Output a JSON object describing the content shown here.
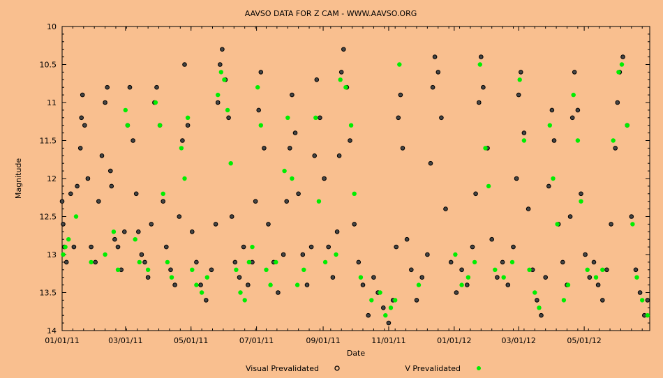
{
  "chart_data": {
    "type": "scatter",
    "title": "AAVSO DATA FOR Z CAM - WWW.AAVSO.ORG",
    "xlabel": "Date",
    "ylabel": "Magnitude",
    "x_axis": {
      "start": "2011-01-01",
      "end": "2012-07-01",
      "tick_labels": [
        "01/01/11",
        "03/01/11",
        "05/01/11",
        "07/01/11",
        "09/01/11",
        "11/01/11",
        "01/01/12",
        "03/01/12",
        "05/01/12"
      ],
      "tick_dates": [
        "2011-01-01",
        "2011-03-01",
        "2011-05-01",
        "2011-07-01",
        "2011-09-01",
        "2011-11-01",
        "2012-01-01",
        "2012-03-01",
        "2012-05-01"
      ]
    },
    "y_axis": {
      "range": [
        10,
        14
      ],
      "inverted": true,
      "tick_labels": [
        "10",
        "10.5",
        "11",
        "11.5",
        "12",
        "12.5",
        "13",
        "13.5",
        "14"
      ]
    },
    "grid": false,
    "legend_position": "bottom",
    "colors": {
      "background": "#f9bf8f",
      "visual": "#000000",
      "v_band": "#00ee00"
    },
    "series": [
      {
        "name": "Visual Prevalidated",
        "marker": "black-open-circle",
        "points": [
          [
            "2011-01-01",
            12.3
          ],
          [
            "2011-01-02",
            12.6
          ],
          [
            "2011-01-03",
            12.9
          ],
          [
            "2011-01-05",
            13.1
          ],
          [
            "2011-01-09",
            12.2
          ],
          [
            "2011-01-12",
            12.9
          ],
          [
            "2011-01-15",
            12.1
          ],
          [
            "2011-01-18",
            11.6
          ],
          [
            "2011-01-19",
            11.2
          ],
          [
            "2011-01-20",
            10.9
          ],
          [
            "2011-01-22",
            11.3
          ],
          [
            "2011-01-25",
            12.0
          ],
          [
            "2011-01-28",
            12.9
          ],
          [
            "2011-02-01",
            13.1
          ],
          [
            "2011-02-04",
            12.3
          ],
          [
            "2011-02-07",
            11.7
          ],
          [
            "2011-02-10",
            11.0
          ],
          [
            "2011-02-12",
            10.8
          ],
          [
            "2011-02-15",
            11.9
          ],
          [
            "2011-02-16",
            12.1
          ],
          [
            "2011-02-19",
            12.8
          ],
          [
            "2011-02-22",
            12.9
          ],
          [
            "2011-02-25",
            13.2
          ],
          [
            "2011-02-28",
            12.7
          ],
          [
            "2011-03-03",
            11.3
          ],
          [
            "2011-03-05",
            10.8
          ],
          [
            "2011-03-08",
            11.5
          ],
          [
            "2011-03-11",
            12.2
          ],
          [
            "2011-03-13",
            12.7
          ],
          [
            "2011-03-16",
            13.0
          ],
          [
            "2011-03-19",
            13.1
          ],
          [
            "2011-03-22",
            13.3
          ],
          [
            "2011-03-25",
            12.6
          ],
          [
            "2011-03-28",
            11.0
          ],
          [
            "2011-03-30",
            10.8
          ],
          [
            "2011-04-02",
            11.3
          ],
          [
            "2011-04-05",
            12.3
          ],
          [
            "2011-04-08",
            12.9
          ],
          [
            "2011-04-12",
            13.2
          ],
          [
            "2011-04-16",
            13.4
          ],
          [
            "2011-04-20",
            12.5
          ],
          [
            "2011-04-23",
            11.5
          ],
          [
            "2011-04-25",
            10.5
          ],
          [
            "2011-04-28",
            11.3
          ],
          [
            "2011-05-02",
            12.7
          ],
          [
            "2011-05-06",
            13.1
          ],
          [
            "2011-05-10",
            13.4
          ],
          [
            "2011-05-15",
            13.6
          ],
          [
            "2011-05-20",
            13.2
          ],
          [
            "2011-05-24",
            12.6
          ],
          [
            "2011-05-26",
            11.0
          ],
          [
            "2011-05-28",
            10.5
          ],
          [
            "2011-05-30",
            10.3
          ],
          [
            "2011-06-02",
            10.7
          ],
          [
            "2011-06-05",
            11.2
          ],
          [
            "2011-06-08",
            12.5
          ],
          [
            "2011-06-11",
            13.1
          ],
          [
            "2011-06-15",
            13.3
          ],
          [
            "2011-06-19",
            12.9
          ],
          [
            "2011-06-23",
            13.4
          ],
          [
            "2011-06-27",
            13.1
          ],
          [
            "2011-06-30",
            12.3
          ],
          [
            "2011-07-03",
            11.1
          ],
          [
            "2011-07-05",
            10.6
          ],
          [
            "2011-07-08",
            11.6
          ],
          [
            "2011-07-12",
            12.6
          ],
          [
            "2011-07-17",
            13.1
          ],
          [
            "2011-07-21",
            13.5
          ],
          [
            "2011-07-26",
            13.0
          ],
          [
            "2011-07-29",
            12.3
          ],
          [
            "2011-08-01",
            11.6
          ],
          [
            "2011-08-03",
            10.9
          ],
          [
            "2011-08-06",
            11.4
          ],
          [
            "2011-08-09",
            12.2
          ],
          [
            "2011-08-13",
            13.0
          ],
          [
            "2011-08-17",
            13.4
          ],
          [
            "2011-08-21",
            12.9
          ],
          [
            "2011-08-24",
            11.7
          ],
          [
            "2011-08-26",
            10.7
          ],
          [
            "2011-08-29",
            11.2
          ],
          [
            "2011-09-02",
            12.0
          ],
          [
            "2011-09-06",
            12.9
          ],
          [
            "2011-09-10",
            13.3
          ],
          [
            "2011-09-14",
            12.7
          ],
          [
            "2011-09-16",
            11.7
          ],
          [
            "2011-09-18",
            10.6
          ],
          [
            "2011-09-20",
            10.3
          ],
          [
            "2011-09-23",
            10.8
          ],
          [
            "2011-09-26",
            11.5
          ],
          [
            "2011-09-30",
            12.6
          ],
          [
            "2011-10-04",
            13.1
          ],
          [
            "2011-10-08",
            13.4
          ],
          [
            "2011-10-13",
            13.8
          ],
          [
            "2011-10-18",
            13.3
          ],
          [
            "2011-10-22",
            13.5
          ],
          [
            "2011-10-27",
            13.7
          ],
          [
            "2011-11-01",
            13.9
          ],
          [
            "2011-11-05",
            13.6
          ],
          [
            "2011-11-08",
            12.9
          ],
          [
            "2011-11-10",
            11.2
          ],
          [
            "2011-11-12",
            10.9
          ],
          [
            "2011-11-14",
            11.6
          ],
          [
            "2011-11-18",
            12.8
          ],
          [
            "2011-11-22",
            13.2
          ],
          [
            "2011-11-27",
            13.6
          ],
          [
            "2011-12-02",
            13.3
          ],
          [
            "2011-12-07",
            13.0
          ],
          [
            "2011-12-10",
            11.8
          ],
          [
            "2011-12-12",
            10.8
          ],
          [
            "2011-12-14",
            10.4
          ],
          [
            "2011-12-17",
            10.6
          ],
          [
            "2011-12-20",
            11.2
          ],
          [
            "2011-12-24",
            12.4
          ],
          [
            "2011-12-29",
            13.1
          ],
          [
            "2012-01-03",
            13.5
          ],
          [
            "2012-01-08",
            13.2
          ],
          [
            "2012-01-13",
            13.4
          ],
          [
            "2012-01-18",
            12.9
          ],
          [
            "2012-01-21",
            12.2
          ],
          [
            "2012-01-24",
            11.0
          ],
          [
            "2012-01-26",
            10.4
          ],
          [
            "2012-01-28",
            10.8
          ],
          [
            "2012-02-01",
            11.6
          ],
          [
            "2012-02-05",
            12.8
          ],
          [
            "2012-02-10",
            13.3
          ],
          [
            "2012-02-15",
            13.1
          ],
          [
            "2012-02-20",
            13.4
          ],
          [
            "2012-02-25",
            12.9
          ],
          [
            "2012-02-28",
            12.0
          ],
          [
            "2012-03-01",
            10.9
          ],
          [
            "2012-03-03",
            10.6
          ],
          [
            "2012-03-06",
            11.4
          ],
          [
            "2012-03-10",
            12.4
          ],
          [
            "2012-03-14",
            13.2
          ],
          [
            "2012-03-18",
            13.6
          ],
          [
            "2012-03-22",
            13.8
          ],
          [
            "2012-03-26",
            13.3
          ],
          [
            "2012-03-29",
            12.1
          ],
          [
            "2012-04-01",
            11.1
          ],
          [
            "2012-04-03",
            11.5
          ],
          [
            "2012-04-07",
            12.6
          ],
          [
            "2012-04-11",
            13.1
          ],
          [
            "2012-04-15",
            13.4
          ],
          [
            "2012-04-18",
            12.5
          ],
          [
            "2012-04-20",
            11.2
          ],
          [
            "2012-04-22",
            10.6
          ],
          [
            "2012-04-25",
            11.1
          ],
          [
            "2012-04-28",
            12.2
          ],
          [
            "2012-05-02",
            13.0
          ],
          [
            "2012-05-06",
            13.3
          ],
          [
            "2012-05-10",
            13.1
          ],
          [
            "2012-05-14",
            13.4
          ],
          [
            "2012-05-18",
            13.6
          ],
          [
            "2012-05-22",
            13.2
          ],
          [
            "2012-05-26",
            12.6
          ],
          [
            "2012-05-30",
            11.6
          ],
          [
            "2012-06-01",
            11.0
          ],
          [
            "2012-06-03",
            10.6
          ],
          [
            "2012-06-06",
            10.4
          ],
          [
            "2012-06-10",
            11.3
          ],
          [
            "2012-06-14",
            12.5
          ],
          [
            "2012-06-18",
            13.2
          ],
          [
            "2012-06-22",
            13.5
          ],
          [
            "2012-06-26",
            13.8
          ],
          [
            "2012-06-29",
            13.6
          ]
        ]
      },
      {
        "name": "V Prevalidated",
        "marker": "green-filled-circle",
        "points": [
          [
            "2011-01-02",
            13.0
          ],
          [
            "2011-01-04",
            12.9
          ],
          [
            "2011-01-07",
            12.8
          ],
          [
            "2011-01-14",
            12.5
          ],
          [
            "2011-01-28",
            13.1
          ],
          [
            "2011-02-10",
            13.0
          ],
          [
            "2011-02-18",
            12.7
          ],
          [
            "2011-02-22",
            13.2
          ],
          [
            "2011-03-01",
            11.1
          ],
          [
            "2011-03-03",
            11.3
          ],
          [
            "2011-03-10",
            12.8
          ],
          [
            "2011-03-14",
            13.1
          ],
          [
            "2011-03-22",
            13.2
          ],
          [
            "2011-03-29",
            11.0
          ],
          [
            "2011-04-02",
            11.3
          ],
          [
            "2011-04-05",
            12.2
          ],
          [
            "2011-04-09",
            13.1
          ],
          [
            "2011-04-13",
            13.3
          ],
          [
            "2011-04-22",
            11.6
          ],
          [
            "2011-04-25",
            12.0
          ],
          [
            "2011-04-28",
            11.2
          ],
          [
            "2011-05-02",
            13.2
          ],
          [
            "2011-05-06",
            13.4
          ],
          [
            "2011-05-11",
            13.5
          ],
          [
            "2011-05-16",
            13.3
          ],
          [
            "2011-05-26",
            10.9
          ],
          [
            "2011-05-29",
            10.6
          ],
          [
            "2011-06-01",
            10.7
          ],
          [
            "2011-06-04",
            11.1
          ],
          [
            "2011-06-07",
            11.8
          ],
          [
            "2011-06-12",
            13.2
          ],
          [
            "2011-06-16",
            13.5
          ],
          [
            "2011-06-20",
            13.6
          ],
          [
            "2011-06-24",
            13.1
          ],
          [
            "2011-06-27",
            12.9
          ],
          [
            "2011-07-02",
            10.8
          ],
          [
            "2011-07-05",
            11.3
          ],
          [
            "2011-07-10",
            13.2
          ],
          [
            "2011-07-14",
            13.4
          ],
          [
            "2011-07-19",
            13.1
          ],
          [
            "2011-07-27",
            11.9
          ],
          [
            "2011-07-30",
            11.2
          ],
          [
            "2011-08-03",
            12.0
          ],
          [
            "2011-08-08",
            13.4
          ],
          [
            "2011-08-14",
            13.2
          ],
          [
            "2011-08-25",
            11.2
          ],
          [
            "2011-08-28",
            12.3
          ],
          [
            "2011-09-03",
            13.1
          ],
          [
            "2011-09-13",
            13.0
          ],
          [
            "2011-09-17",
            10.7
          ],
          [
            "2011-09-22",
            10.8
          ],
          [
            "2011-09-27",
            11.3
          ],
          [
            "2011-09-30",
            12.2
          ],
          [
            "2011-10-06",
            13.3
          ],
          [
            "2011-10-16",
            13.6
          ],
          [
            "2011-10-24",
            13.5
          ],
          [
            "2011-10-29",
            13.8
          ],
          [
            "2011-11-03",
            13.7
          ],
          [
            "2011-11-07",
            13.6
          ],
          [
            "2011-11-11",
            10.5
          ],
          [
            "2011-11-29",
            13.4
          ],
          [
            "2012-01-02",
            13.0
          ],
          [
            "2012-01-08",
            13.4
          ],
          [
            "2012-01-14",
            13.3
          ],
          [
            "2012-01-20",
            13.1
          ],
          [
            "2012-01-25",
            10.5
          ],
          [
            "2012-01-30",
            11.6
          ],
          [
            "2012-02-02",
            12.1
          ],
          [
            "2012-02-08",
            13.2
          ],
          [
            "2012-02-16",
            13.3
          ],
          [
            "2012-02-24",
            13.1
          ],
          [
            "2012-03-02",
            10.7
          ],
          [
            "2012-03-06",
            11.5
          ],
          [
            "2012-03-11",
            13.2
          ],
          [
            "2012-03-16",
            13.5
          ],
          [
            "2012-03-20",
            13.7
          ],
          [
            "2012-03-30",
            11.3
          ],
          [
            "2012-04-02",
            12.0
          ],
          [
            "2012-04-06",
            12.6
          ],
          [
            "2012-04-12",
            13.6
          ],
          [
            "2012-04-16",
            13.4
          ],
          [
            "2012-04-21",
            10.9
          ],
          [
            "2012-04-25",
            11.5
          ],
          [
            "2012-04-28",
            12.3
          ],
          [
            "2012-05-04",
            13.2
          ],
          [
            "2012-05-12",
            13.3
          ],
          [
            "2012-05-18",
            13.2
          ],
          [
            "2012-05-28",
            11.5
          ],
          [
            "2012-06-02",
            10.6
          ],
          [
            "2012-06-05",
            10.5
          ],
          [
            "2012-06-10",
            11.3
          ],
          [
            "2012-06-15",
            12.6
          ],
          [
            "2012-06-19",
            13.3
          ],
          [
            "2012-06-24",
            13.6
          ],
          [
            "2012-06-29",
            13.8
          ]
        ]
      }
    ]
  }
}
